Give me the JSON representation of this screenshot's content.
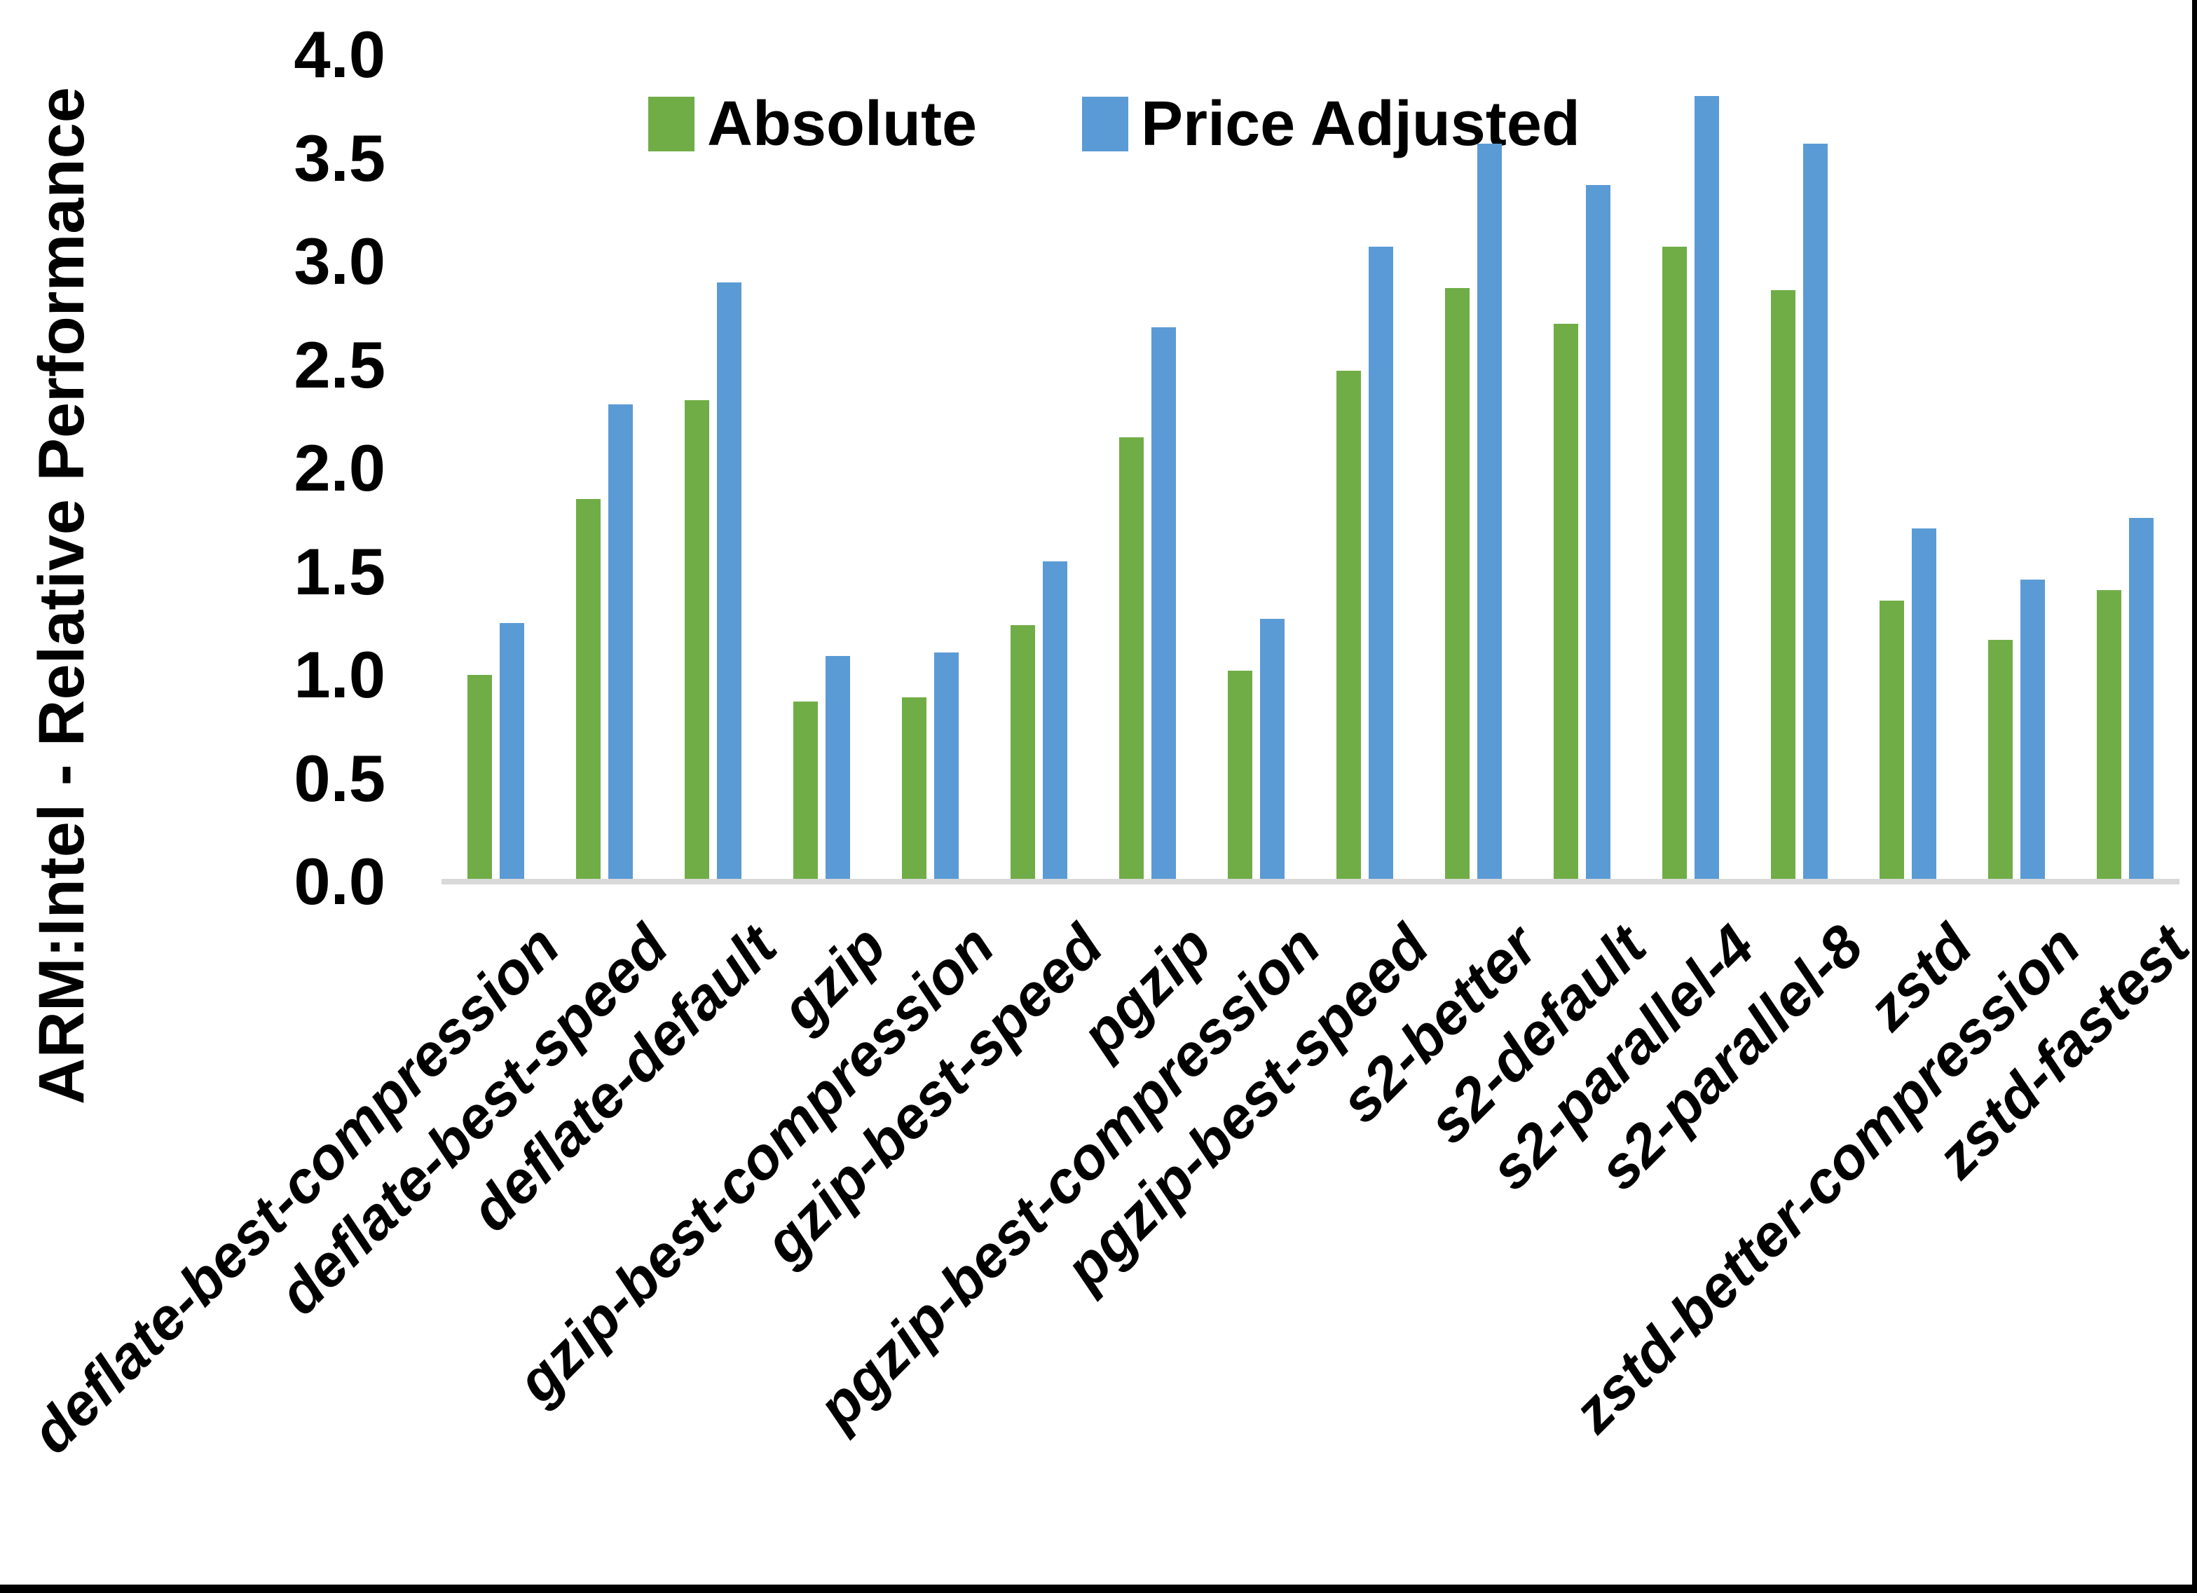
{
  "colors": {
    "absolute_green": "#70AD47",
    "price_adjusted_blue": "#5B9BD5",
    "axis_line": "#D9D9D9",
    "frame": "#000000",
    "text": "#000000"
  },
  "chart_data": {
    "type": "bar",
    "title": "",
    "xlabel": "",
    "ylabel": "ARM:Intel - Relative Performance",
    "ylim": [
      0.0,
      4.0
    ],
    "yticks": [
      "0.0",
      "0.5",
      "1.0",
      "1.5",
      "2.0",
      "2.5",
      "3.0",
      "3.5",
      "4.0"
    ],
    "grid": false,
    "legend_position": "top-center",
    "categories": [
      "deflate-best-compression",
      "deflate-best-speed",
      "deflate-default",
      "gzip",
      "gzip-best-compression",
      "gzip-best-speed",
      "pgzip",
      "pgzip-best-compression",
      "pgzip-best-speed",
      "s2-better",
      "s2-default",
      "s2-parallel-4",
      "s2-parallel-8",
      "zstd",
      "zstd-better-compression",
      "zstd-fastest"
    ],
    "series": [
      {
        "name": "Absolute",
        "color": "#70AD47",
        "values": [
          1.0,
          1.85,
          2.33,
          0.87,
          0.89,
          1.24,
          2.15,
          1.02,
          2.47,
          2.87,
          2.7,
          3.07,
          2.86,
          1.36,
          1.17,
          1.41
        ]
      },
      {
        "name": "Price Adjusted",
        "color": "#5B9BD5",
        "values": [
          1.25,
          2.31,
          2.9,
          1.09,
          1.11,
          1.55,
          2.68,
          1.27,
          3.07,
          3.57,
          3.37,
          3.8,
          3.57,
          1.71,
          1.46,
          1.76
        ]
      }
    ]
  }
}
